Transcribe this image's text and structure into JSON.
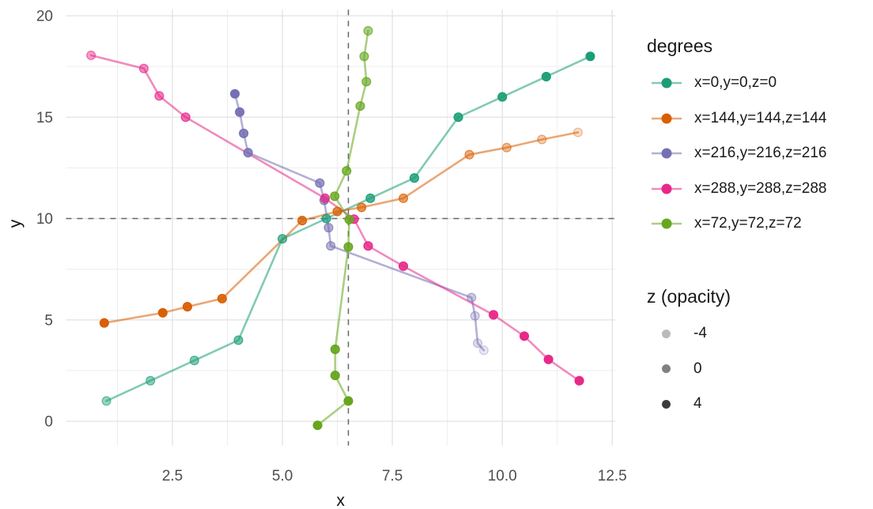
{
  "chart_data": {
    "type": "line",
    "title": "",
    "xlabel": "x",
    "ylabel": "y",
    "grid": true,
    "xlim": [
      0.08,
      12.57
    ],
    "ylim": [
      -1.2,
      20.3
    ],
    "x_ticks": [
      {
        "label": "2.5",
        "value": 2.5
      },
      {
        "label": "5.0",
        "value": 5.0
      },
      {
        "label": "7.5",
        "value": 7.5
      },
      {
        "label": "10.0",
        "value": 10.0
      },
      {
        "label": "12.5",
        "value": 12.5
      }
    ],
    "y_ticks": [
      {
        "label": "0",
        "value": 0
      },
      {
        "label": "5",
        "value": 5
      },
      {
        "label": "10",
        "value": 10
      },
      {
        "label": "15",
        "value": 15
      },
      {
        "label": "20",
        "value": 20
      }
    ],
    "reference_lines": {
      "vertical_x": 6.5,
      "horizontal_y": 10,
      "style": "dashed",
      "color": "#666666"
    },
    "legend": {
      "color_title": "degrees",
      "alpha_title": "z (opacity)",
      "alpha_items": [
        {
          "label": "-4",
          "opacity": 0.3
        },
        {
          "label": "0",
          "opacity": 0.55
        },
        {
          "label": "4",
          "opacity": 0.85
        }
      ]
    },
    "series": [
      {
        "name": "x=0,y=0,z=0",
        "color": "#1B9E77",
        "points": [
          [
            1,
            1,
            0.45
          ],
          [
            2,
            2,
            0.5
          ],
          [
            3,
            3,
            0.55
          ],
          [
            4,
            4,
            0.62
          ],
          [
            5,
            9,
            0.68
          ],
          [
            6,
            10,
            0.72
          ],
          [
            7,
            11,
            0.78
          ],
          [
            8,
            12,
            0.82
          ],
          [
            9,
            15,
            0.88
          ],
          [
            10,
            16,
            0.92
          ],
          [
            11,
            17,
            0.96
          ],
          [
            12,
            18,
            1.0
          ]
        ]
      },
      {
        "name": "x=144,y=144,z=144",
        "color": "#D95F02",
        "points": [
          [
            0.95,
            4.85,
            1.0
          ],
          [
            2.28,
            5.35,
            1.0
          ],
          [
            2.84,
            5.65,
            0.95
          ],
          [
            3.63,
            6.05,
            0.9
          ],
          [
            5.45,
            9.9,
            0.8
          ],
          [
            6.25,
            10.35,
            0.75
          ],
          [
            6.8,
            10.55,
            0.68
          ],
          [
            7.75,
            11.0,
            0.6
          ],
          [
            9.25,
            13.15,
            0.5
          ],
          [
            10.1,
            13.5,
            0.42
          ],
          [
            10.9,
            13.9,
            0.32
          ],
          [
            11.72,
            14.25,
            0.22
          ]
        ]
      },
      {
        "name": "x=216,y=216,z=216",
        "color": "#7570B3",
        "points": [
          [
            3.92,
            16.15,
            1.0
          ],
          [
            4.03,
            15.25,
            0.95
          ],
          [
            4.12,
            14.2,
            0.88
          ],
          [
            4.22,
            13.25,
            0.82
          ],
          [
            5.85,
            11.75,
            0.72
          ],
          [
            5.95,
            10.9,
            0.65
          ],
          [
            6.05,
            9.55,
            0.58
          ],
          [
            6.1,
            8.65,
            0.52
          ],
          [
            9.3,
            6.1,
            0.38
          ],
          [
            9.38,
            5.2,
            0.3
          ],
          [
            9.44,
            3.85,
            0.24
          ],
          [
            9.58,
            3.5,
            0.16
          ]
        ]
      },
      {
        "name": "x=288,y=288,z=288",
        "color": "#E7298A",
        "points": [
          [
            0.65,
            18.05,
            0.45
          ],
          [
            1.85,
            17.4,
            0.52
          ],
          [
            2.2,
            16.05,
            0.6
          ],
          [
            2.8,
            15.0,
            0.67
          ],
          [
            5.97,
            11.0,
            0.75
          ],
          [
            6.63,
            9.97,
            0.8
          ],
          [
            6.95,
            8.65,
            0.85
          ],
          [
            7.75,
            7.65,
            0.9
          ],
          [
            9.8,
            5.25,
            0.95
          ],
          [
            10.5,
            4.2,
            1.0
          ],
          [
            11.05,
            3.05,
            1.0
          ],
          [
            11.75,
            2.0,
            1.0
          ]
        ]
      },
      {
        "name": "x=72,y=72,z=72",
        "color": "#66A61E",
        "points": [
          [
            6.95,
            19.26,
            0.55
          ],
          [
            6.86,
            18.0,
            0.6
          ],
          [
            6.91,
            16.75,
            0.65
          ],
          [
            6.77,
            15.55,
            0.7
          ],
          [
            6.46,
            12.35,
            0.75
          ],
          [
            6.19,
            11.1,
            0.8
          ],
          [
            6.52,
            9.95,
            0.84
          ],
          [
            6.5,
            8.6,
            0.88
          ],
          [
            6.2,
            3.55,
            0.92
          ],
          [
            6.2,
            2.26,
            0.95
          ],
          [
            6.5,
            1.0,
            1.0
          ],
          [
            5.8,
            -0.2,
            1.0
          ]
        ]
      }
    ]
  }
}
